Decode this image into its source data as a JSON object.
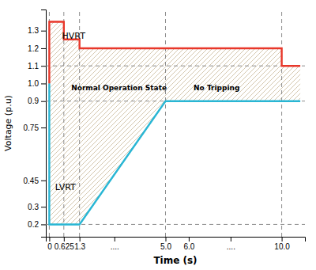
{
  "chart_data": {
    "type": "line",
    "xlabel": "Time (s)",
    "ylabel": "Voltage (p.u)",
    "xlim": [
      -0.15,
      11.0
    ],
    "ylim": [
      0.13,
      1.42
    ],
    "xticks": [
      0,
      0.625,
      1.3,
      {
        "value": 2.8,
        "label": "...."
      },
      {
        "value": 5.0,
        "label": "5.0"
      },
      {
        "value": 6.0,
        "label": "6.0"
      },
      {
        "value": 7.8,
        "label": "...."
      },
      {
        "value": 10.0,
        "label": "10.0"
      }
    ],
    "yticks": [
      0.2,
      0.3,
      0.45,
      0.75,
      0.9,
      {
        "value": 1.0,
        "label": "1.0"
      },
      1.1,
      1.2,
      1.3
    ],
    "grid": false,
    "series": [
      {
        "color": "#e8372a",
        "x": [
          0,
          0,
          0.625,
          0.625,
          1.3,
          1.3,
          10.0,
          10.0,
          10.8
        ],
        "values": [
          1.0,
          1.35,
          1.35,
          1.25,
          1.25,
          1.2,
          1.2,
          1.1,
          1.1
        ]
      },
      {
        "color": "#29b6d4",
        "x": [
          0,
          0,
          0.625,
          1.3,
          5.0,
          10.0,
          10.8
        ],
        "values": [
          1.0,
          0.2,
          0.2,
          0.2,
          0.9,
          0.9,
          0.9
        ]
      }
    ],
    "hlines": [
      1.1,
      0.9,
      0.2
    ],
    "vlines": [
      0,
      0.625,
      1.3,
      5.0,
      10.0
    ],
    "annotations": [
      {
        "text": "HVRT",
        "x": 0.55,
        "y": 1.27
      },
      {
        "text": "LVRT",
        "x": 0.25,
        "y": 0.41
      },
      {
        "text": "Normal Operation State",
        "x": 3.0,
        "y": 0.975
      },
      {
        "text": "No Tripping",
        "x": 7.2,
        "y": 0.975
      }
    ]
  }
}
